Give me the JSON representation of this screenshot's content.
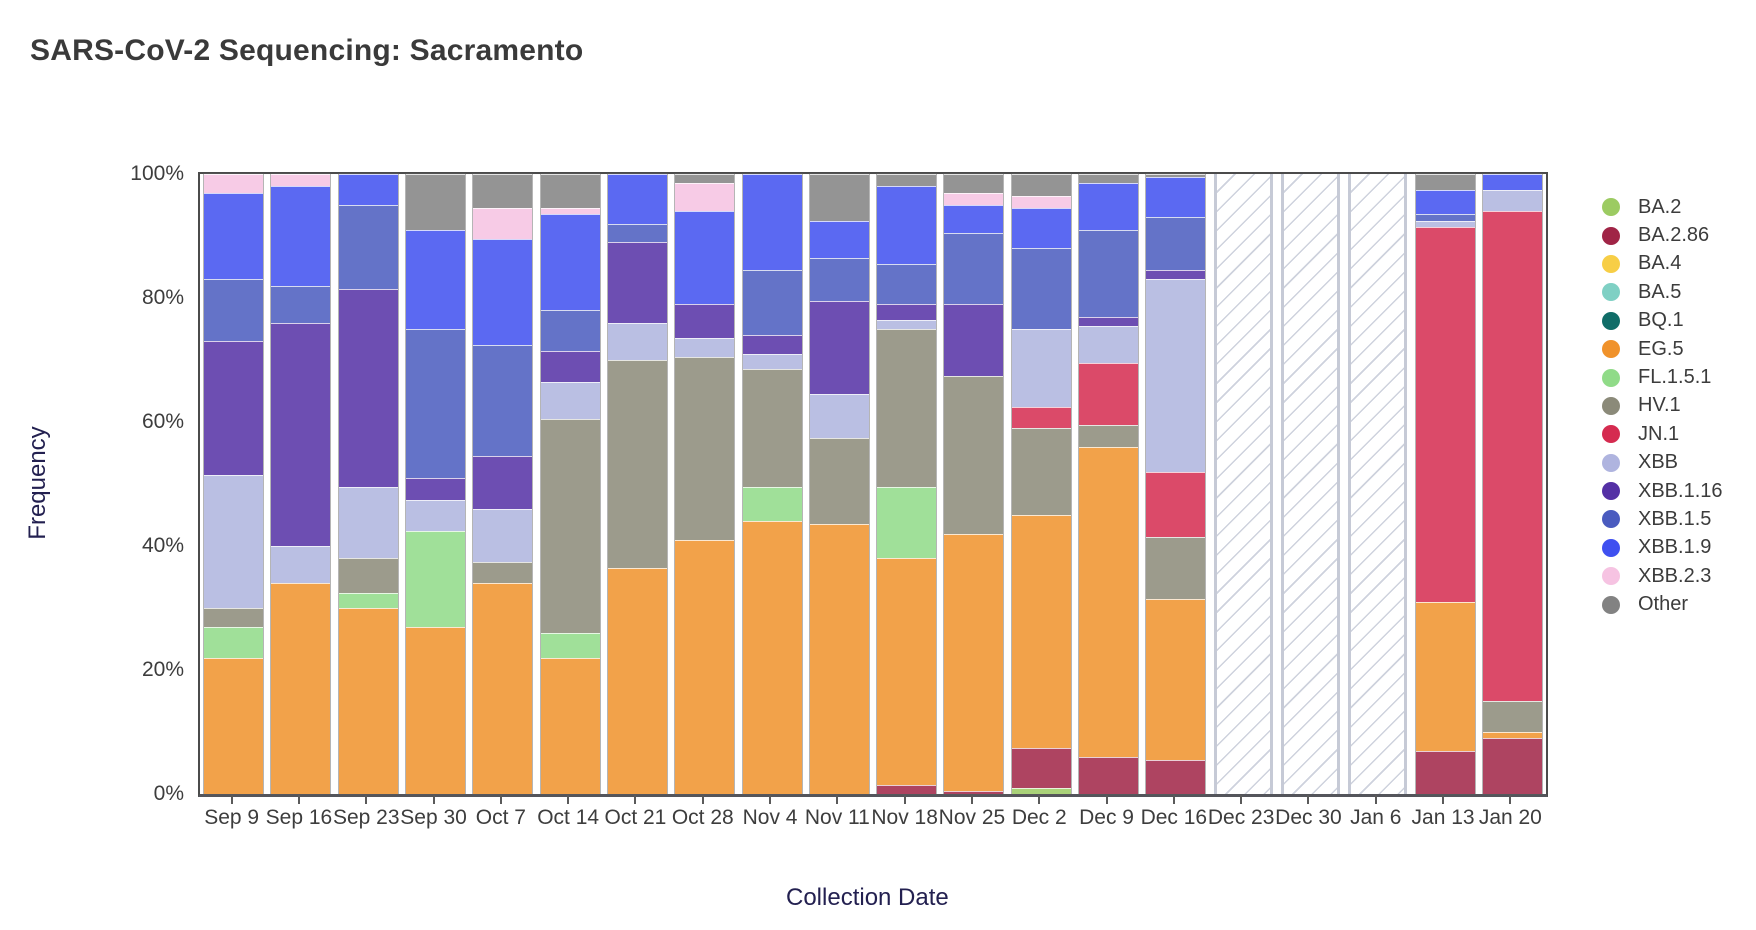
{
  "title": "SARS-CoV-2 Sequencing: Sacramento",
  "axes": {
    "y_label": "Frequency",
    "x_label": "Collection Date",
    "y_ticks": [
      "100%",
      "80%",
      "60%",
      "40%",
      "20%",
      "0%"
    ]
  },
  "legend": {
    "position": "right",
    "items": [
      {
        "label": "BA.2",
        "color": "#9ccb62"
      },
      {
        "label": "BA.2.86",
        "color": "#a02446"
      },
      {
        "label": "BA.4",
        "color": "#f7ce46"
      },
      {
        "label": "BA.5",
        "color": "#7fd0c4"
      },
      {
        "label": "BQ.1",
        "color": "#106d68"
      },
      {
        "label": "EG.5",
        "color": "#f0922b"
      },
      {
        "label": "FL.1.5.1",
        "color": "#90db88"
      },
      {
        "label": "HV.1",
        "color": "#8b8a79"
      },
      {
        "label": "JN.1",
        "color": "#d52b50"
      },
      {
        "label": "XBB",
        "color": "#afb4df"
      },
      {
        "label": "XBB.1.16",
        "color": "#5430a5"
      },
      {
        "label": "XBB.1.5",
        "color": "#4a5bbf"
      },
      {
        "label": "XBB.1.9",
        "color": "#3f50f0"
      },
      {
        "label": "XBB.2.3",
        "color": "#f6c3e2"
      },
      {
        "label": "Other",
        "color": "#828282"
      }
    ]
  },
  "chart_data": {
    "type": "bar",
    "stacked": true,
    "orientation": "vertical",
    "title": "SARS-CoV-2 Sequencing: Sacramento",
    "xlabel": "Collection Date",
    "ylabel": "Frequency",
    "ylim": [
      0,
      100
    ],
    "unit": "percent",
    "grid": false,
    "legend_position": "right",
    "categories": [
      "Sep 9",
      "Sep 16",
      "Sep 23",
      "Sep 30",
      "Oct 7",
      "Oct 14",
      "Oct 21",
      "Oct 28",
      "Nov 4",
      "Nov 11",
      "Nov 18",
      "Nov 25",
      "Dec 2",
      "Dec 9",
      "Dec 16",
      "Dec 23",
      "Dec 30",
      "Jan 6",
      "Jan 13",
      "Jan 20"
    ],
    "no_data_categories": [
      "Dec 23",
      "Dec 30",
      "Jan 6"
    ],
    "series": [
      {
        "name": "BA.2",
        "color": "#9ccb62",
        "values": [
          0,
          0,
          0,
          0,
          0,
          0,
          0,
          0,
          0,
          0,
          0,
          0,
          1,
          0,
          0,
          null,
          null,
          null,
          0,
          0
        ]
      },
      {
        "name": "BA.2.86",
        "color": "#a02446",
        "values": [
          0,
          0,
          0,
          0,
          0,
          0,
          0,
          0,
          0,
          0,
          1.5,
          0.5,
          6.5,
          6,
          5.5,
          null,
          null,
          null,
          7,
          9
        ]
      },
      {
        "name": "BA.4",
        "color": "#f7ce46",
        "values": [
          0,
          0,
          0,
          0,
          0,
          0,
          0,
          0,
          0,
          0,
          0,
          0,
          0,
          0,
          0,
          null,
          null,
          null,
          0,
          0
        ]
      },
      {
        "name": "BA.5",
        "color": "#7fd0c4",
        "values": [
          0,
          0,
          0,
          0,
          0,
          0,
          0,
          0,
          0,
          0,
          0,
          0,
          0,
          0,
          0,
          null,
          null,
          null,
          0,
          0
        ]
      },
      {
        "name": "BQ.1",
        "color": "#106d68",
        "values": [
          0,
          0,
          0,
          0,
          0,
          0,
          0,
          0,
          0,
          0,
          0,
          0,
          0,
          0,
          0,
          null,
          null,
          null,
          0,
          0
        ]
      },
      {
        "name": "EG.5",
        "color": "#f0922b",
        "values": [
          22,
          34,
          30,
          27,
          34,
          22,
          36.5,
          41,
          44,
          43.5,
          36.5,
          41.5,
          37.5,
          50,
          26,
          null,
          null,
          null,
          24,
          1
        ]
      },
      {
        "name": "FL.1.5.1",
        "color": "#90db88",
        "values": [
          5,
          0,
          2.5,
          15.5,
          0,
          4,
          0,
          0,
          5.5,
          0,
          11.5,
          0,
          0,
          0,
          0,
          null,
          null,
          null,
          0,
          0
        ]
      },
      {
        "name": "HV.1",
        "color": "#8b8a79",
        "values": [
          3,
          0,
          5.5,
          0,
          3.5,
          34.5,
          33.5,
          29.5,
          19,
          14,
          25.5,
          25.5,
          14,
          3.5,
          10,
          null,
          null,
          null,
          0,
          5
        ]
      },
      {
        "name": "JN.1",
        "color": "#d52b50",
        "values": [
          0,
          0,
          0,
          0,
          0,
          0,
          0,
          0,
          0,
          0,
          0,
          0,
          3.5,
          10,
          10.5,
          null,
          null,
          null,
          60.5,
          79
        ]
      },
      {
        "name": "XBB",
        "color": "#afb4df",
        "values": [
          21.5,
          6,
          11.5,
          5,
          8.5,
          6,
          6,
          3,
          2.5,
          7,
          1.5,
          0,
          12.5,
          6,
          31,
          null,
          null,
          null,
          1,
          3.5
        ]
      },
      {
        "name": "XBB.1.16",
        "color": "#5430a5",
        "values": [
          21.5,
          36,
          32,
          3.5,
          8.5,
          5,
          13,
          5.5,
          3,
          15,
          2.5,
          11.5,
          0,
          1.5,
          1.5,
          null,
          null,
          null,
          0,
          0
        ]
      },
      {
        "name": "XBB.1.5",
        "color": "#4a5bbf",
        "values": [
          10,
          6,
          13.5,
          24,
          18,
          6.5,
          3,
          0,
          10.5,
          7,
          6.5,
          11.5,
          13,
          14,
          8.5,
          null,
          null,
          null,
          1,
          0
        ]
      },
      {
        "name": "XBB.1.9",
        "color": "#3f50f0",
        "values": [
          14,
          16,
          5,
          16,
          17,
          15.5,
          8,
          15,
          15.5,
          6,
          12.5,
          4.5,
          6.5,
          7.5,
          6.5,
          null,
          null,
          null,
          4,
          2.5
        ]
      },
      {
        "name": "XBB.2.3",
        "color": "#f6c3e2",
        "values": [
          3,
          2,
          0,
          0,
          5,
          1,
          0,
          4.5,
          0,
          0,
          0,
          2,
          2,
          0,
          0,
          null,
          null,
          null,
          0,
          0
        ]
      },
      {
        "name": "Other",
        "color": "#828282",
        "values": [
          0,
          0,
          0,
          9,
          5.5,
          5.5,
          0,
          1.5,
          0,
          7.5,
          2,
          3,
          3.5,
          1.5,
          0.5,
          null,
          null,
          null,
          2.5,
          0
        ]
      }
    ]
  }
}
